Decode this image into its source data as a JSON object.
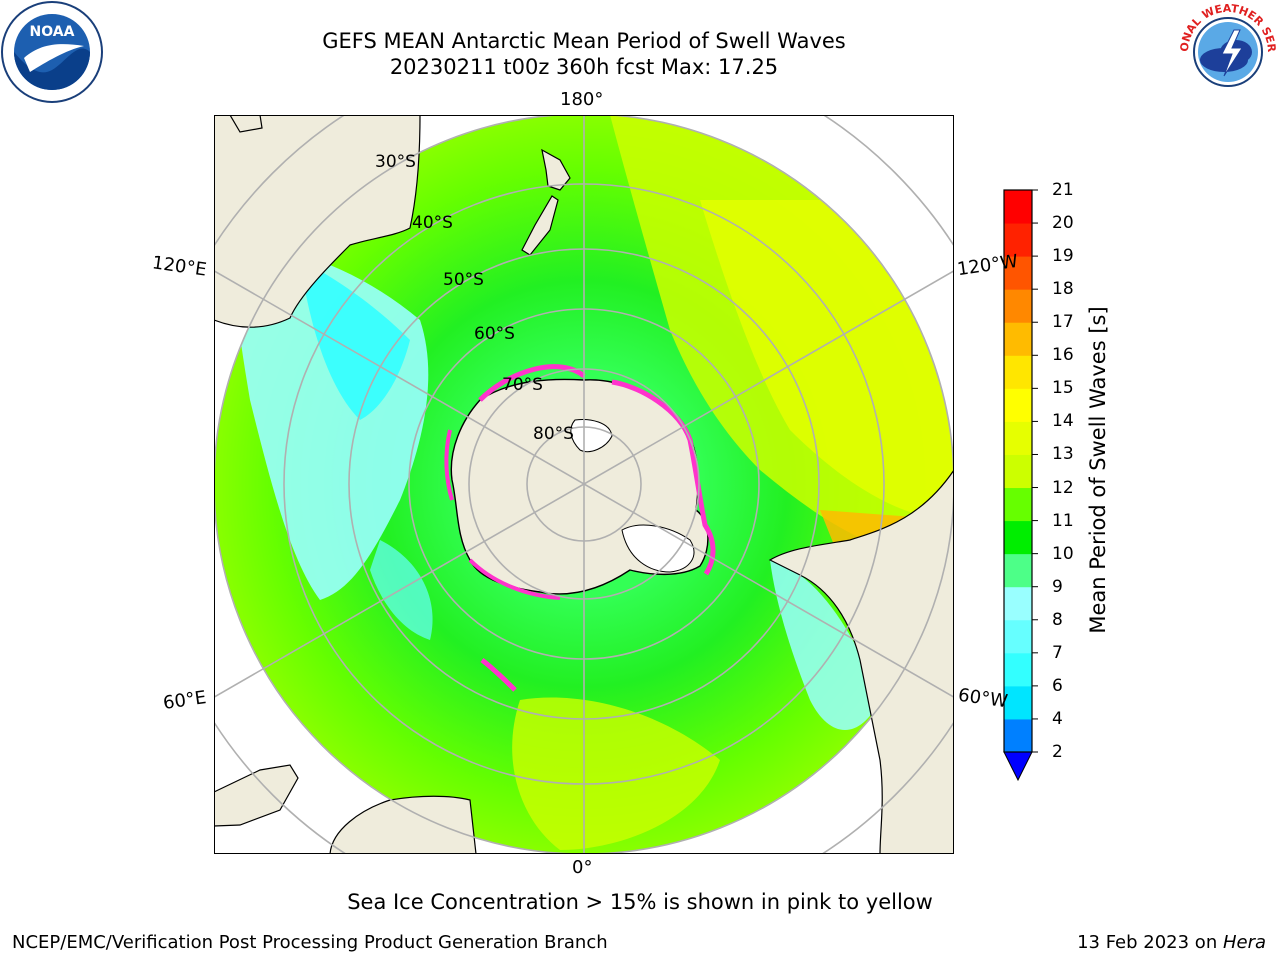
{
  "title": {
    "line1": "GEFS MEAN Antarctic Mean Period of Swell Waves",
    "line2": "20230211 t00z 360h fcst   Max: 17.25"
  },
  "logos": {
    "left": "noaa-logo",
    "left_text": "NOAA",
    "right": "nws-logo",
    "right_text": "NATIONAL WEATHER SERVICE"
  },
  "map": {
    "projection": "south-polar-stereographic",
    "lon_labels": {
      "top": "180°",
      "upper_left": "120°E",
      "upper_right": "120°W",
      "lower_left": "60°E",
      "lower_right": "60°W",
      "bottom": "0°"
    },
    "lat_labels": [
      "30°S",
      "40°S",
      "50°S",
      "60°S",
      "70°S",
      "80°S"
    ],
    "colors": {
      "land": "#efecdc",
      "sea_ice_edge": "#ff33cc",
      "grid": "#b0b0b0"
    }
  },
  "colorbar": {
    "label": "Mean Period of Swell Waves [s]",
    "ticks": [
      "2",
      "4",
      "6",
      "7",
      "8",
      "9",
      "10",
      "11",
      "12",
      "13",
      "14",
      "15",
      "16",
      "17",
      "18",
      "19",
      "20",
      "21"
    ],
    "colors": [
      "#0080ff",
      "#00e5ff",
      "#33ffff",
      "#66ffff",
      "#99ffff",
      "#4dff88",
      "#00ee00",
      "#66ff00",
      "#ccff00",
      "#e6ff00",
      "#ffff00",
      "#ffe600",
      "#ffbb00",
      "#ff8800",
      "#ff5500",
      "#ff2200",
      "#ff0000"
    ],
    "under_color": "#0000ff"
  },
  "caption": "Sea Ice Concentration > 15% is shown in pink to yellow",
  "footer": {
    "left": "NCEP/EMC/Verification Post Processing Product Generation Branch",
    "right_prefix": "13 Feb 2023 on ",
    "right_host": "Hera"
  }
}
